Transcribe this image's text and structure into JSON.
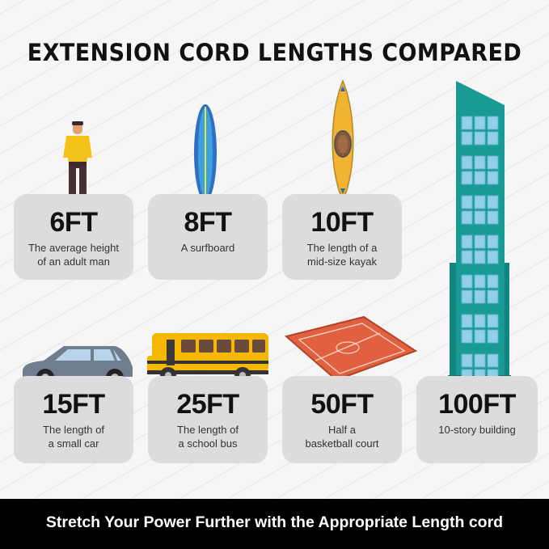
{
  "title": "EXTENSION CORD LENGTHS COMPARED",
  "items": [
    {
      "length": "6FT",
      "desc1": "The average height",
      "desc2": "of an adult man",
      "icon": "man-icon"
    },
    {
      "length": "8FT",
      "desc1": "A surfboard",
      "desc2": "",
      "icon": "surfboard-icon"
    },
    {
      "length": "10FT",
      "desc1": "The length of a",
      "desc2": "mid-size kayak",
      "icon": "kayak-icon"
    },
    {
      "length": "15FT",
      "desc1": "The length of",
      "desc2": "a small car",
      "icon": "car-icon"
    },
    {
      "length": "25FT",
      "desc1": "The length of",
      "desc2": "a school bus",
      "icon": "school-bus-icon"
    },
    {
      "length": "50FT",
      "desc1": "Half a",
      "desc2": "basketball court",
      "icon": "basketball-court-icon"
    },
    {
      "length": "100FT",
      "desc1": "10-story building",
      "desc2": "",
      "icon": "building-icon"
    }
  ],
  "footer": "Stretch Your Power Further with the Appropriate Length cord",
  "colors": {
    "card": "#dcdcdc",
    "building": "#1a9a94",
    "bus": "#f5b800",
    "court": "#e0603f",
    "footer_bg": "#000000"
  }
}
